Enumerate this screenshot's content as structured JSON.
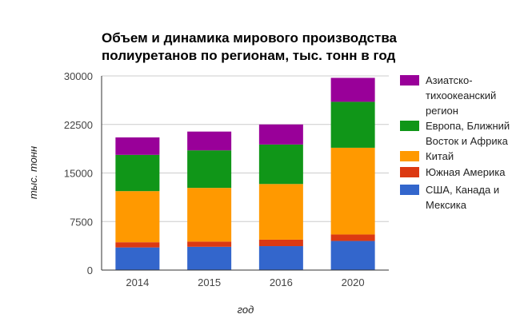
{
  "chart_data": {
    "type": "bar",
    "stacked": true,
    "title_lines": [
      "Объем и динамика мирового производства",
      "полиуретанов по регионам, тыс. тонн в год"
    ],
    "xlabel": "год",
    "ylabel": "тыс. тонн",
    "categories": [
      "2014",
      "2015",
      "2016",
      "2020"
    ],
    "ylim": [
      0,
      30000
    ],
    "yticks": [
      0,
      7500,
      15000,
      22500,
      30000
    ],
    "ytick_labels": [
      "0",
      "7500",
      "15000",
      "22500",
      "30000"
    ],
    "grid": true,
    "legend_position": "right",
    "series": [
      {
        "name": "США, Канада и Мексика",
        "legend_lines": [
          "США, Канада и",
          "Мексика"
        ],
        "color": "#3366cc",
        "values": [
          3500,
          3600,
          3700,
          4500
        ]
      },
      {
        "name": "Южная Америка",
        "legend_lines": [
          "Южная Америка"
        ],
        "color": "#dc3912",
        "values": [
          800,
          800,
          1000,
          1000
        ]
      },
      {
        "name": "Китай",
        "legend_lines": [
          "Китай"
        ],
        "color": "#ff9900",
        "values": [
          7900,
          8300,
          8600,
          13400
        ]
      },
      {
        "name": "Европа, Ближний Восток и Африка",
        "legend_lines": [
          "Европа, Ближний",
          "Восток и Африка"
        ],
        "color": "#109618",
        "values": [
          5600,
          5800,
          6100,
          7100
        ]
      },
      {
        "name": "Азиатско-тихоокеанский регион",
        "legend_lines": [
          "Азиатско-",
          "тихоокеанский",
          "регион"
        ],
        "color": "#990099",
        "values": [
          2700,
          2900,
          3100,
          3700
        ]
      }
    ],
    "legend_order": [
      4,
      3,
      2,
      1,
      0
    ]
  }
}
